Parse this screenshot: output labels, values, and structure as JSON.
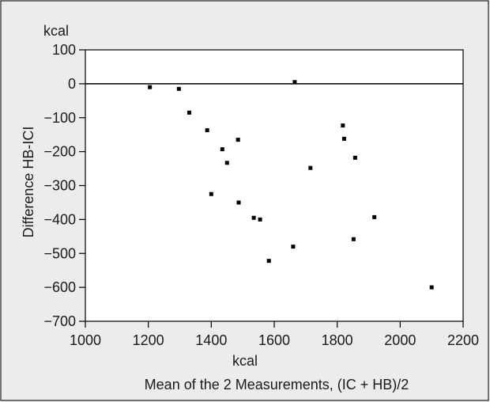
{
  "chart_data": {
    "type": "scatter",
    "title": "",
    "xlabel": "Mean of the 2 Measurements, (IC + HB)/2",
    "xunit": "kcal",
    "ylabel": "Difference HB-ICI",
    "yunit": "kcal",
    "xlim": [
      1000,
      2200
    ],
    "ylim": [
      -700,
      100
    ],
    "xticks": [
      1000,
      1200,
      1400,
      1600,
      1800,
      2000,
      2200
    ],
    "yticks": [
      100,
      0,
      -100,
      -200,
      -300,
      -400,
      -500,
      -600,
      -700
    ],
    "xtick_labels": [
      "1000",
      "1200",
      "1400",
      "1600",
      "1800",
      "2000",
      "2200"
    ],
    "ytick_labels": [
      "100",
      "0",
      "−100",
      "−200",
      "−300",
      "−400",
      "−500",
      "−600",
      "−700"
    ],
    "reference_line": 0,
    "grid": false,
    "legend": "none",
    "points": [
      {
        "x": 1205,
        "y": -10
      },
      {
        "x": 1297,
        "y": -15
      },
      {
        "x": 1330,
        "y": -85
      },
      {
        "x": 1387,
        "y": -137
      },
      {
        "x": 1400,
        "y": -325
      },
      {
        "x": 1435,
        "y": -193
      },
      {
        "x": 1450,
        "y": -233
      },
      {
        "x": 1485,
        "y": -165
      },
      {
        "x": 1487,
        "y": -350
      },
      {
        "x": 1535,
        "y": -395
      },
      {
        "x": 1555,
        "y": -400
      },
      {
        "x": 1583,
        "y": -522
      },
      {
        "x": 1660,
        "y": -480
      },
      {
        "x": 1665,
        "y": 5
      },
      {
        "x": 1715,
        "y": -248
      },
      {
        "x": 1818,
        "y": -123
      },
      {
        "x": 1822,
        "y": -162
      },
      {
        "x": 1852,
        "y": -458
      },
      {
        "x": 1857,
        "y": -218
      },
      {
        "x": 1918,
        "y": -393
      },
      {
        "x": 2100,
        "y": -600
      }
    ],
    "colors": {
      "marker": "#000000",
      "axis": "#000000",
      "plot_bg": "#ffffff",
      "figure_bg": "#ececec"
    }
  }
}
